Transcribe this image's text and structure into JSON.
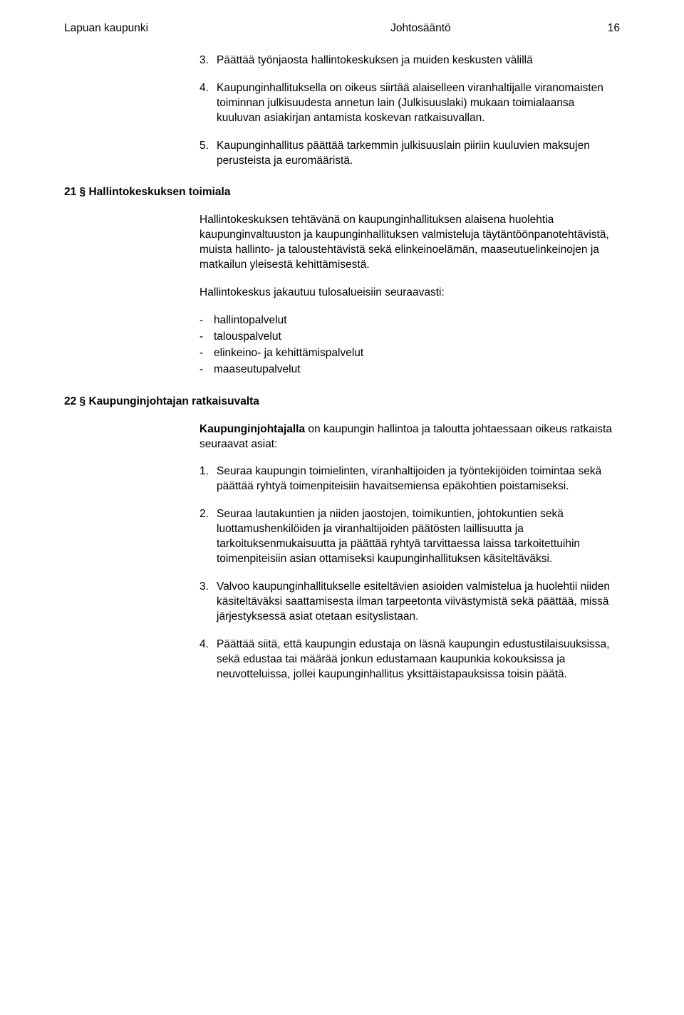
{
  "header": {
    "left": "Lapuan kaupunki",
    "center": "Johtosääntö",
    "pageNumber": "16"
  },
  "topItems": [
    {
      "num": "3.",
      "text": "Päättää työnjaosta hallintokeskuksen ja muiden keskusten välillä"
    },
    {
      "num": "4.",
      "text": "Kaupunginhallituksella on oikeus siirtää alaiselleen viranhaltijalle viranomaisten toiminnan julkisuudesta annetun lain (Julkisuuslaki) mukaan toimialaansa kuuluvan asiakirjan antamista koskevan ratkaisuvallan."
    },
    {
      "num": "5.",
      "text": "Kaupunginhallitus päättää tarkemmin julkisuuslain piiriin kuuluvien maksujen perusteista ja euromääristä."
    }
  ],
  "sections": [
    {
      "heading": "21 §  Hallintokeskuksen toimiala",
      "paras": [
        "Hallintokeskuksen tehtävänä on kaupunginhallituksen alaisena huolehtia kaupunginvaltuuston ja kaupunginhallituksen valmisteluja täytäntöönpanotehtävistä, muista hallinto- ja taloustehtävistä sekä elinkeinoelämän, maaseutuelinkeinojen ja matkailun yleisestä kehittämisestä.",
        "Hallintokeskus jakautuu tulosalueisiin seuraavasti:"
      ],
      "bullets": [
        "hallintopalvelut",
        "talouspalvelut",
        "elinkeino- ja kehittämispalvelut",
        "maaseutupalvelut"
      ]
    },
    {
      "heading": "22 §  Kaupunginjohtajan ratkaisuvalta",
      "introBold": "Kaupunginjohtajalla",
      "introRest": " on kaupungin hallintoa ja taloutta johtaessaan oikeus ratkaista seuraavat asiat:",
      "items": [
        {
          "num": "1.",
          "text": "Seuraa kaupungin toimielinten, viranhaltijoiden ja työntekijöiden toimintaa sekä päättää ryhtyä toimenpiteisiin havaitsemiensa epäkohtien poistamiseksi."
        },
        {
          "num": "2.",
          "text": "Seuraa lautakuntien ja niiden jaostojen, toimikuntien, johtokuntien sekä luottamushenkilöiden ja viranhaltijoiden päätösten laillisuutta ja tarkoituksenmukaisuutta ja päättää ryhtyä tarvittaessa laissa tarkoitettuihin toimenpiteisiin asian ottamiseksi kaupunginhallituksen käsiteltäväksi."
        },
        {
          "num": "3.",
          "text": "Valvoo kaupunginhallitukselle esiteltävien asioiden valmistelua ja huolehtii niiden käsiteltäväksi saattamisesta ilman tarpeetonta viivästymistä sekä päättää, missä järjestyksessä asiat otetaan esityslistaan."
        },
        {
          "num": "4.",
          "text": "Päättää siitä, että kaupungin edustaja on läsnä kaupungin edustustilaisuuksissa, sekä edustaa tai määrää jonkun edustamaan kaupunkia kokouksissa ja neuvotteluissa, jollei kaupunginhallitus yksittäistapauksissa toisin päätä."
        }
      ]
    }
  ]
}
